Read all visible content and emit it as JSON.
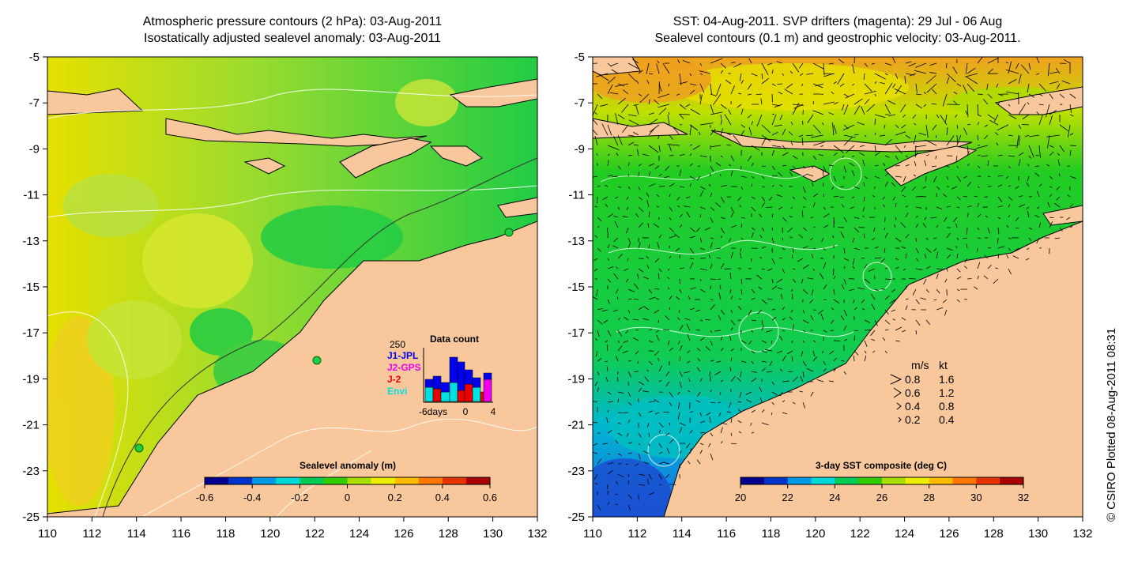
{
  "left_panel": {
    "title_line1": "Atmospheric pressure contours (2 hPa): 03-Aug-2011",
    "title_line2": "Isostatically adjusted sealevel anomaly: 03-Aug-2011",
    "colorbar": {
      "label": "Sealevel anomaly (m)",
      "ticks": [
        "-0.6",
        "-0.4",
        "-0.2",
        "0",
        "0.2",
        "0.4",
        "0.6"
      ],
      "colors": [
        "#00008c",
        "#0033cc",
        "#0099e6",
        "#00d9d9",
        "#00cc55",
        "#33cc00",
        "#aadd00",
        "#eeee00",
        "#ffbb00",
        "#ff7700",
        "#e63300",
        "#aa0000"
      ]
    },
    "inset": {
      "title": "Data count",
      "ymax_label": "250",
      "x_labels": [
        "-6days",
        "0",
        "4"
      ],
      "legend": [
        {
          "label": "J1-JPL",
          "color": "#0000ee"
        },
        {
          "label": "J2-GPS",
          "color": "#ee00ee"
        },
        {
          "label": "J-2",
          "color": "#ee0000"
        },
        {
          "label": "Envi",
          "color": "#00e0e0"
        }
      ]
    }
  },
  "right_panel": {
    "title_line1": "SST: 04-Aug-2011. SVP drifters (magenta): 29 Jul - 06 Aug",
    "title_line2": "Sealevel contours (0.1 m) and geostrophic velocity: 03-Aug-2011.",
    "colorbar": {
      "label": "3-day SST composite (deg C)",
      "ticks": [
        "20",
        "22",
        "24",
        "26",
        "28",
        "30",
        "32"
      ],
      "colors": [
        "#00008c",
        "#0033cc",
        "#0099e6",
        "#00d9d9",
        "#00cc55",
        "#33cc00",
        "#aadd00",
        "#eeee00",
        "#ffbb00",
        "#ff7700",
        "#e63300",
        "#aa0000"
      ]
    },
    "speed_legend": {
      "header_ms": "m/s",
      "header_kt": "kt",
      "rows": [
        {
          "ms": "0.8",
          "kt": "1.6"
        },
        {
          "ms": "0.6",
          "kt": "1.2"
        },
        {
          "ms": "0.4",
          "kt": "0.8"
        },
        {
          "ms": "0.2",
          "kt": "0.4"
        }
      ]
    }
  },
  "axes": {
    "y_labels": [
      "-5",
      "-7",
      "-9",
      "-11",
      "-13",
      "-15",
      "-17",
      "-19",
      "-21",
      "-23",
      "-25"
    ],
    "x_labels": [
      "110",
      "112",
      "114",
      "116",
      "118",
      "120",
      "122",
      "124",
      "126",
      "128",
      "130",
      "132"
    ]
  },
  "credit": "© CSIRO Plotted 08-Aug-2011 08:31",
  "colors": {
    "land": "#f8c89c",
    "ocean_green": "#22cc44",
    "ocean_yellowgreen": "#b8e040"
  }
}
